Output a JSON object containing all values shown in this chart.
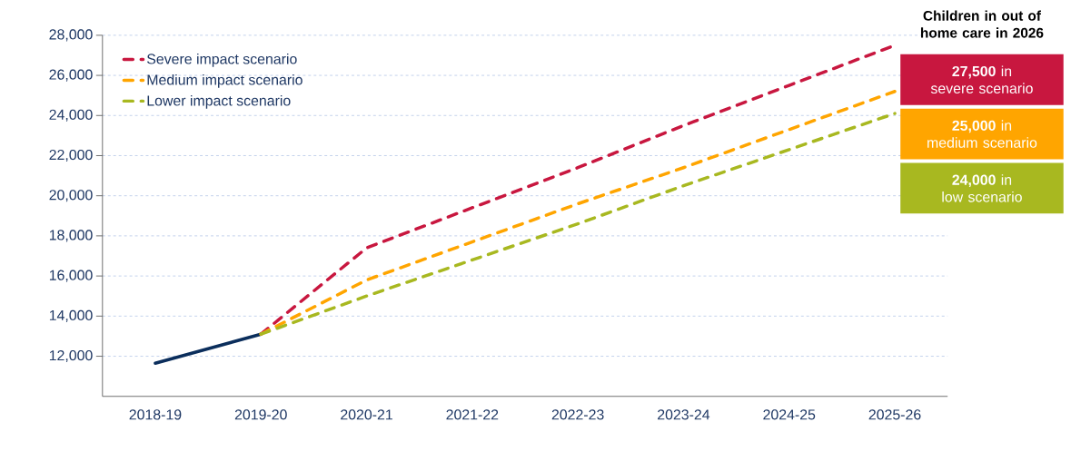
{
  "chart_data": {
    "type": "line",
    "categories": [
      "2018-19",
      "2019-20",
      "2020-21",
      "2021-22",
      "2022-23",
      "2023-24",
      "2024-25",
      "2025-26"
    ],
    "series": [
      {
        "color": "#0b2e5c",
        "line_style": "solid",
        "values": [
          11650,
          13100,
          null,
          null,
          null,
          null,
          null,
          null
        ]
      },
      {
        "name": "Severe impact scenario",
        "color": "#c8173f",
        "line_style": "dashed",
        "values": [
          null,
          13100,
          17400,
          19400,
          21400,
          23500,
          25500,
          27500
        ]
      },
      {
        "name": "Medium impact scenario",
        "color": "#ffa500",
        "line_style": "dashed",
        "values": [
          null,
          13100,
          15800,
          17700,
          19600,
          21400,
          23300,
          25200
        ]
      },
      {
        "name": "Lower impact scenario",
        "color": "#a8b820",
        "line_style": "dashed",
        "values": [
          null,
          13100,
          15000,
          16800,
          18600,
          20500,
          22300,
          24100
        ]
      }
    ],
    "ylim": [
      10000,
      28000
    ],
    "yticks": [
      {
        "value": 12000,
        "label": "12,000"
      },
      {
        "value": 14000,
        "label": "14,000"
      },
      {
        "value": 16000,
        "label": "16,000"
      },
      {
        "value": 18000,
        "label": "18,000"
      },
      {
        "value": 20000,
        "label": "20,000"
      },
      {
        "value": 22000,
        "label": "22,000"
      },
      {
        "value": 24000,
        "label": "24,000"
      },
      {
        "value": 26000,
        "label": "26,000"
      },
      {
        "value": 28000,
        "label": "28,000"
      }
    ],
    "grid": "y",
    "legend": "top left",
    "annotations": [
      "Children in out of home care in 2026",
      "**27,500** in severe scenario",
      "**25,000** in medium scenario",
      "**24,000** in low scenario"
    ]
  }
}
